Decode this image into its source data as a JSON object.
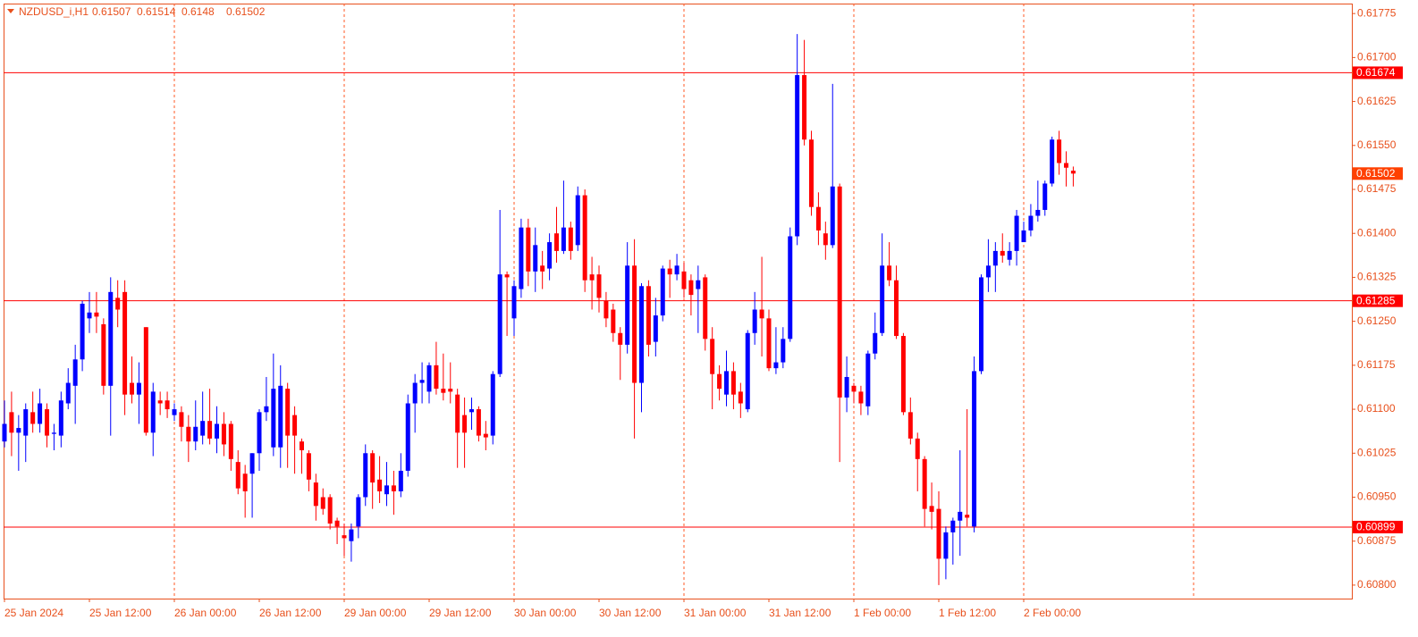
{
  "chart_data": {
    "type": "candlestick",
    "symbol": "NZDUSD_i,H1",
    "up_color": "#0000ff",
    "down_color": "#ff0000",
    "grid_color": "#ff5a24",
    "level_color": "#ff0000",
    "ylim": [
      0.60777,
      0.61792
    ],
    "yticks": [
      0.61775,
      {
        "value": 0.617,
        "label": "0.61700"
      },
      0.61625,
      {
        "value": 0.6155,
        "label": "0.61550"
      },
      0.61475,
      {
        "value": 0.614,
        "label": "0.61400"
      },
      0.61325,
      {
        "value": 0.6125,
        "label": "0.61250"
      },
      0.61175,
      {
        "value": 0.611,
        "label": "0.61100"
      },
      0.61025,
      {
        "value": 0.6095,
        "label": "0.60950"
      },
      0.60875,
      {
        "value": 0.608,
        "label": "0.60800"
      }
    ],
    "levels": [
      0.61674,
      0.61285,
      0.60899
    ],
    "categories": [
      "25 Jan 2024",
      null,
      null,
      null,
      null,
      null,
      null,
      null,
      null,
      null,
      null,
      null,
      "25 Jan 12:00",
      null,
      null,
      null,
      null,
      null,
      null,
      null,
      null,
      null,
      null,
      null,
      "26 Jan 00:00",
      null,
      null,
      null,
      null,
      null,
      null,
      null,
      null,
      null,
      null,
      null,
      "26 Jan 12:00",
      null,
      null,
      null,
      null,
      null,
      null,
      null,
      null,
      null,
      null,
      null,
      "29 Jan 00:00",
      null,
      null,
      null,
      null,
      null,
      null,
      null,
      null,
      null,
      null,
      null,
      "29 Jan 12:00",
      null,
      null,
      null,
      null,
      null,
      null,
      null,
      null,
      null,
      null,
      null,
      "30 Jan 00:00",
      null,
      null,
      null,
      null,
      null,
      null,
      null,
      null,
      null,
      null,
      null,
      "30 Jan 12:00",
      null,
      null,
      null,
      null,
      null,
      null,
      null,
      null,
      null,
      null,
      null,
      "31 Jan 00:00",
      null,
      null,
      null,
      null,
      null,
      null,
      null,
      null,
      null,
      null,
      null,
      "31 Jan 12:00",
      null,
      null,
      null,
      null,
      null,
      null,
      null,
      null,
      null,
      null,
      null,
      "1 Feb 00:00",
      null,
      null,
      null,
      null,
      null,
      null,
      null,
      null,
      null,
      null,
      null,
      "1 Feb 12:00",
      null,
      null,
      null,
      null,
      null,
      null,
      null,
      null,
      null,
      null,
      null,
      "2 Feb 00:00",
      null,
      null,
      null,
      null,
      null,
      null,
      null
    ],
    "open": [
      0.61045,
      0.61095,
      0.6106,
      0.61055,
      0.61095,
      0.61075,
      0.611,
      0.61058,
      0.61055,
      0.6111,
      0.6114,
      0.61185,
      0.61255,
      0.61265,
      0.61245,
      0.6114,
      0.6129,
      0.613,
      0.61145,
      0.61125,
      0.6124,
      0.6106,
      0.61115,
      0.61115,
      0.6109,
      0.61095,
      0.6107,
      0.61045,
      0.61055,
      0.6108,
      0.6105,
      0.61075,
      0.61075,
      0.6101,
      0.6099,
      0.6099,
      0.61025,
      0.61095,
      0.61035,
      0.61035,
      0.61135,
      0.6109,
      0.61045,
      0.61025,
      0.60975,
      0.6095,
      0.6095,
      0.6091,
      0.60885,
      0.60875,
      0.609,
      0.6095,
      0.61025,
      0.6098,
      0.60955,
      0.6097,
      0.6096,
      0.60995,
      0.6111,
      0.61145,
      0.6113,
      0.61175,
      0.61135,
      0.61135,
      0.61125,
      0.6109,
      0.61095,
      0.611,
      0.61058,
      0.61055,
      0.6116,
      0.6133,
      0.61255,
      0.61305,
      0.6141,
      0.61335,
      0.61345,
      0.6134,
      0.614,
      0.6137,
      0.6141,
      0.6138,
      0.61465,
      0.6133,
      0.6133,
      0.61285,
      0.6127,
      0.6123,
      0.6121,
      0.61345,
      0.61145,
      0.6131,
      0.61215,
      0.6126,
      0.6134,
      0.6133,
      0.61335,
      0.6132,
      0.61305,
      0.61325,
      0.6122,
      0.6116,
      0.61125,
      0.61165,
      0.6113,
      0.611,
      0.6123,
      0.6127,
      0.61255,
      0.6117,
      0.6118,
      0.6122,
      0.61395,
      0.6167,
      0.6156,
      0.61445,
      0.614,
      0.6138,
      0.6148,
      0.6112,
      0.6114,
      0.6113,
      0.61105,
      0.61195,
      0.6123,
      0.61345,
      0.6132,
      0.61225,
      0.61095,
      0.6105,
      0.61015,
      0.60935,
      0.6093,
      0.60845,
      0.6089,
      0.6091,
      0.6092,
      0.609,
      0.61165,
      0.61325,
      0.61345,
      0.6137,
      0.61355,
      0.6137,
      0.61385,
      0.61405,
      0.6143,
      0.6144,
      0.61485,
      0.6156,
      0.6152,
      0.61507
    ],
    "high": [
      0.61115,
      0.6113,
      0.6109,
      0.6111,
      0.6113,
      0.61135,
      0.6111,
      0.61075,
      0.6113,
      0.6117,
      0.6121,
      0.61285,
      0.613,
      0.613,
      0.61255,
      0.61325,
      0.6132,
      0.6132,
      0.6119,
      0.6118,
      0.6124,
      0.61145,
      0.6113,
      0.6113,
      0.6111,
      0.61105,
      0.6109,
      0.61115,
      0.6113,
      0.61135,
      0.61105,
      0.61095,
      0.6108,
      0.6103,
      0.61005,
      0.61025,
      0.611,
      0.61155,
      0.61195,
      0.61175,
      0.61145,
      0.61105,
      0.6105,
      0.6103,
      0.6099,
      0.60965,
      0.60955,
      0.60915,
      0.60905,
      0.60905,
      0.60955,
      0.6104,
      0.6103,
      0.6102,
      0.6101,
      0.60995,
      0.61025,
      0.61125,
      0.6116,
      0.6118,
      0.6118,
      0.61215,
      0.61195,
      0.6118,
      0.61135,
      0.6112,
      0.6112,
      0.61105,
      0.6108,
      0.61165,
      0.6144,
      0.61335,
      0.6132,
      0.61425,
      0.61425,
      0.6141,
      0.6137,
      0.614,
      0.61445,
      0.6149,
      0.6142,
      0.6148,
      0.61475,
      0.6136,
      0.61345,
      0.613,
      0.6128,
      0.6124,
      0.61385,
      0.6139,
      0.61315,
      0.6132,
      0.6129,
      0.61345,
      0.61355,
      0.61365,
      0.6135,
      0.6133,
      0.61345,
      0.6133,
      0.6124,
      0.61175,
      0.612,
      0.6118,
      0.61145,
      0.61235,
      0.613,
      0.6136,
      0.6127,
      0.6124,
      0.6124,
      0.6141,
      0.6174,
      0.6173,
      0.61575,
      0.6147,
      0.6142,
      0.61655,
      0.61485,
      0.6119,
      0.61145,
      0.6114,
      0.612,
      0.61265,
      0.614,
      0.61385,
      0.61345,
      0.6123,
      0.6112,
      0.6106,
      0.6102,
      0.60975,
      0.6096,
      0.609,
      0.60915,
      0.6103,
      0.611,
      0.6119,
      0.6133,
      0.6139,
      0.61385,
      0.614,
      0.61385,
      0.6144,
      0.6142,
      0.6145,
      0.6149,
      0.6149,
      0.61565,
      0.61575,
      0.6154,
      0.61514
    ],
    "low": [
      0.61035,
      0.6102,
      0.60995,
      0.6101,
      0.6106,
      0.6106,
      0.61035,
      0.6103,
      0.61035,
      0.611,
      0.61075,
      0.61165,
      0.6123,
      0.6123,
      0.61125,
      0.61055,
      0.6124,
      0.6109,
      0.6111,
      0.61075,
      0.61055,
      0.6102,
      0.6109,
      0.61085,
      0.6108,
      0.61045,
      0.6101,
      0.6103,
      0.6104,
      0.6104,
      0.61025,
      0.6102,
      0.60995,
      0.60955,
      0.60915,
      0.60915,
      0.60995,
      0.6108,
      0.6102,
      0.61,
      0.61,
      0.6099,
      0.6099,
      0.6096,
      0.6091,
      0.6092,
      0.60895,
      0.6087,
      0.6085,
      0.6084,
      0.6088,
      0.60935,
      0.6093,
      0.6094,
      0.60935,
      0.6092,
      0.6095,
      0.60985,
      0.6106,
      0.6111,
      0.6111,
      0.61125,
      0.61115,
      0.6111,
      0.61,
      0.61,
      0.61065,
      0.61045,
      0.6103,
      0.6104,
      0.61155,
      0.61225,
      0.61225,
      0.6129,
      0.6131,
      0.613,
      0.61305,
      0.6132,
      0.6135,
      0.61365,
      0.61355,
      0.6137,
      0.613,
      0.6127,
      0.61265,
      0.6124,
      0.61215,
      0.6115,
      0.61195,
      0.6105,
      0.61095,
      0.6119,
      0.6119,
      0.6125,
      0.6129,
      0.6132,
      0.6129,
      0.6126,
      0.6123,
      0.612,
      0.611,
      0.61115,
      0.61105,
      0.611,
      0.61085,
      0.61095,
      0.6121,
      0.6119,
      0.61165,
      0.6116,
      0.6117,
      0.61215,
      0.6138,
      0.6155,
      0.6143,
      0.6138,
      0.61355,
      0.61375,
      0.6101,
      0.61095,
      0.6111,
      0.6109,
      0.6109,
      0.61185,
      0.61225,
      0.6131,
      0.6122,
      0.6109,
      0.6104,
      0.6096,
      0.609,
      0.60895,
      0.608,
      0.6081,
      0.60835,
      0.6085,
      0.609,
      0.6089,
      0.6116,
      0.613,
      0.613,
      0.6135,
      0.61345,
      0.61345,
      0.61385,
      0.61395,
      0.6142,
      0.6143,
      0.6148,
      0.615,
      0.6148,
      0.6148
    ],
    "close": [
      0.61075,
      0.6106,
      0.61068,
      0.611,
      0.61075,
      0.6111,
      0.61055,
      0.6106,
      0.61115,
      0.61145,
      0.61185,
      0.6128,
      0.61265,
      0.61258,
      0.6114,
      0.613,
      0.6127,
      0.61125,
      0.61125,
      0.61145,
      0.6106,
      0.6113,
      0.6111,
      0.611,
      0.611,
      0.6107,
      0.61045,
      0.6107,
      0.6108,
      0.6105,
      0.61075,
      0.6104,
      0.61015,
      0.60965,
      0.6096,
      0.61025,
      0.61095,
      0.61105,
      0.61135,
      0.6114,
      0.61055,
      0.61055,
      0.6103,
      0.6098,
      0.60935,
      0.6093,
      0.60905,
      0.609,
      0.6088,
      0.60895,
      0.6095,
      0.61025,
      0.60975,
      0.6096,
      0.6097,
      0.6096,
      0.60995,
      0.6111,
      0.61145,
      0.6115,
      0.61175,
      0.61135,
      0.61128,
      0.6113,
      0.6106,
      0.6106,
      0.611,
      0.61055,
      0.61052,
      0.6116,
      0.6133,
      0.61325,
      0.6131,
      0.6141,
      0.61335,
      0.6138,
      0.61335,
      0.61385,
      0.6137,
      0.6141,
      0.6137,
      0.61465,
      0.6132,
      0.6132,
      0.6129,
      0.61255,
      0.6123,
      0.6121,
      0.61345,
      0.61145,
      0.6131,
      0.6121,
      0.6126,
      0.6134,
      0.6133,
      0.61345,
      0.61305,
      0.61295,
      0.6132,
      0.6122,
      0.6116,
      0.61135,
      0.61165,
      0.61125,
      0.6111,
      0.6123,
      0.6127,
      0.61255,
      0.6117,
      0.6118,
      0.6122,
      0.61395,
      0.6167,
      0.6156,
      0.61445,
      0.61405,
      0.6138,
      0.6148,
      0.6112,
      0.61155,
      0.6113,
      0.6111,
      0.61195,
      0.6123,
      0.61345,
      0.6132,
      0.61225,
      0.61095,
      0.6105,
      0.61015,
      0.6093,
      0.60925,
      0.60845,
      0.6089,
      0.6091,
      0.60925,
      0.60915,
      0.61165,
      0.61325,
      0.61345,
      0.6137,
      0.61362,
      0.6137,
      0.6143,
      0.61405,
      0.6143,
      0.6144,
      0.61485,
      0.6156,
      0.6152,
      0.61512,
      0.61502
    ]
  }
}
